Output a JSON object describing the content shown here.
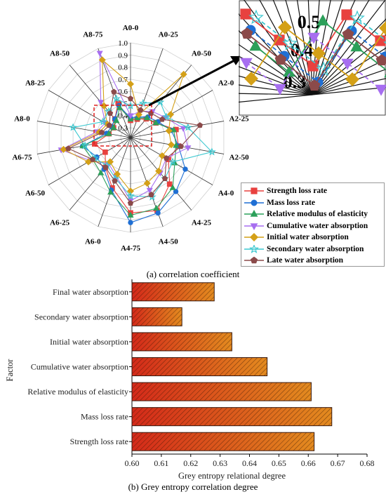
{
  "chart_data": [
    {
      "type": "radar",
      "caption": "(a) correlation coefficient",
      "categories": [
        "A0-0",
        "A0-25",
        "A0-50",
        "A2-0",
        "A2-25",
        "A2-50",
        "A4-0",
        "A4-25",
        "A4-50",
        "A4-75",
        "A6-0",
        "A6-25",
        "A6-50",
        "A6-75",
        "A8-0",
        "A8-25",
        "A8-50",
        "A8-75"
      ],
      "r_ticks": [
        "0.3",
        "0.4",
        "0.5",
        "0.6",
        "0.7",
        "0.8",
        "0.9",
        "1.0"
      ],
      "rlim": [
        0.3,
        1.0
      ],
      "series": [
        {
          "name": "Strength loss rate",
          "color": "#e8413f",
          "marker": "square",
          "values": [
            0.36,
            0.38,
            0.42,
            0.46,
            0.6,
            0.62,
            0.58,
            0.72,
            0.86,
            0.84,
            0.66,
            0.54,
            0.46,
            0.52,
            0.4,
            0.38,
            0.42,
            0.52
          ]
        },
        {
          "name": "Mass loss rate",
          "color": "#1f6fd4",
          "marker": "circle",
          "values": [
            0.38,
            0.4,
            0.44,
            0.48,
            0.56,
            0.62,
            0.74,
            0.8,
            0.88,
            0.92,
            0.68,
            0.56,
            0.54,
            0.62,
            0.42,
            0.4,
            0.42,
            0.5
          ]
        },
        {
          "name": "Relative modulus of elasticity",
          "color": "#2ca05a",
          "marker": "triangle",
          "values": [
            0.37,
            0.39,
            0.43,
            0.46,
            0.58,
            0.6,
            0.64,
            0.76,
            0.84,
            0.86,
            0.7,
            0.6,
            0.58,
            0.62,
            0.4,
            0.38,
            0.4,
            0.48
          ]
        },
        {
          "name": "Cumulative water absorption",
          "color": "#a76ef0",
          "marker": "triangle-down",
          "values": [
            0.4,
            0.45,
            0.5,
            0.55,
            0.66,
            0.7,
            0.56,
            0.6,
            0.68,
            0.74,
            0.56,
            0.5,
            0.6,
            0.8,
            0.5,
            0.46,
            0.6,
            0.96
          ]
        },
        {
          "name": "Initial water absorption",
          "color": "#d4a017",
          "marker": "diamond",
          "values": [
            0.66,
            0.42,
            0.9,
            0.6,
            0.54,
            0.56,
            0.52,
            0.58,
            0.62,
            0.66,
            0.54,
            0.48,
            0.62,
            0.78,
            0.48,
            0.44,
            0.56,
            0.9
          ]
        },
        {
          "name": "Secondary water absorption",
          "color": "#3dc8d0",
          "marker": "star",
          "values": [
            0.48,
            0.52,
            0.6,
            0.56,
            0.7,
            0.9,
            0.62,
            0.66,
            0.74,
            0.7,
            0.58,
            0.52,
            0.56,
            0.6,
            0.7,
            0.48,
            0.5,
            0.56
          ]
        },
        {
          "name": "Late water absorption",
          "color": "#8b4a4a",
          "marker": "pentagon",
          "values": [
            0.54,
            0.46,
            0.48,
            0.52,
            0.8,
            0.64,
            0.56,
            0.66,
            0.72,
            0.76,
            0.6,
            0.54,
            0.58,
            0.74,
            0.46,
            0.42,
            0.48,
            0.62
          ]
        }
      ],
      "inset_labels": [
        "0.5",
        "0.4",
        "0.3"
      ]
    },
    {
      "type": "bar",
      "orientation": "horizontal",
      "caption": "(b) Grey entropy correlation degree",
      "categories": [
        "Final water absorption",
        "Secondary water absorption",
        "Initial water absorption",
        "Cumulative water absorption",
        "Relative modulus of elasticity",
        "Mass loss rate",
        "Strength loss rate"
      ],
      "values": [
        0.628,
        0.617,
        0.634,
        0.646,
        0.661,
        0.668,
        0.662
      ],
      "xlabel": "Grey entropy relational degree",
      "ylabel": "Factor",
      "xlim": [
        0.6,
        0.68
      ],
      "xticks": [
        "0.60",
        "0.61",
        "0.62",
        "0.63",
        "0.64",
        "0.65",
        "0.66",
        "0.67",
        "0.68"
      ],
      "fill_start": "#d42a1a",
      "fill_end": "#e38a1f",
      "hatch": "#2a1000"
    }
  ]
}
